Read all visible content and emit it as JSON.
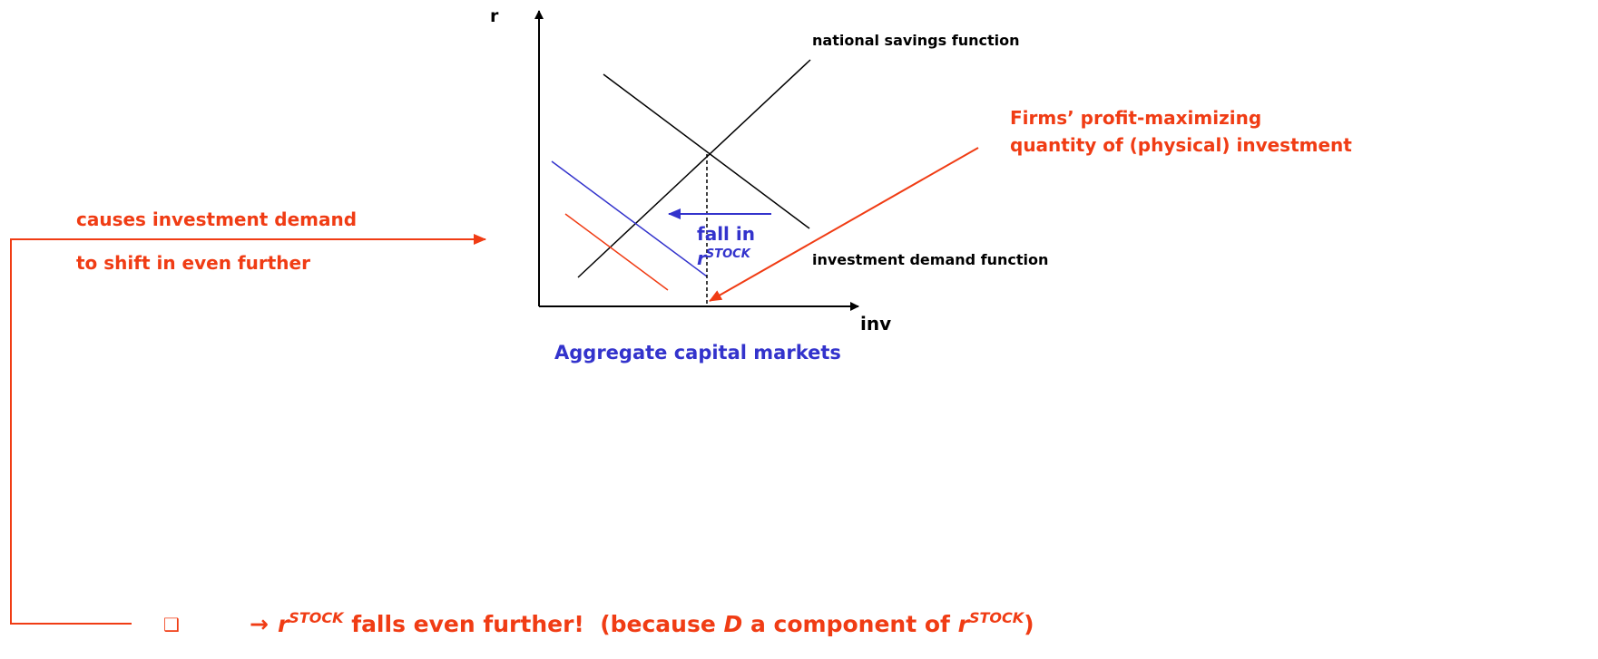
{
  "axes": {
    "y_label": "r",
    "x_label": "inv"
  },
  "curve_labels": {
    "savings": "national savings function",
    "investment": "investment demand function"
  },
  "firms_note": {
    "lines": [
      "Firms’ profit-maximizing",
      "quantity of (physical) investment"
    ]
  },
  "shift_note": {
    "lines": [
      "causes investment demand",
      "to shift in even further"
    ]
  },
  "fall_note": {
    "line1": "fall in",
    "symbol": "r",
    "superscript": "STOCK"
  },
  "title": "Aggregate capital markets",
  "bottom": {
    "bullet": "❑",
    "arrow": "→",
    "parts": [
      "r",
      "STOCK",
      " falls even further!  (because ",
      "D",
      " a component of ",
      "r",
      "STOCK",
      ")"
    ]
  }
}
